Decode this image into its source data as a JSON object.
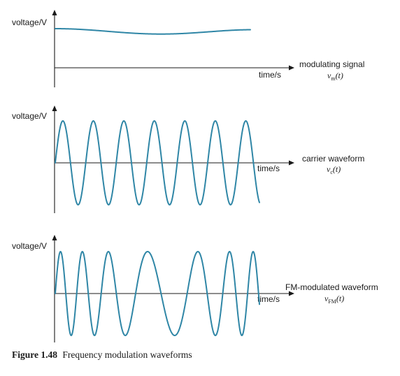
{
  "panels": [
    {
      "id": "modulating",
      "y_label": "voltage/V",
      "x_label": "time/s",
      "title": "modulating signal",
      "signal": {
        "symbol": "v",
        "sub": "m",
        "arg": "(t)"
      },
      "waveform": "slow sinusoid"
    },
    {
      "id": "carrier",
      "y_label": "voltage/V",
      "x_label": "time/s",
      "title": "carrier waveform",
      "signal": {
        "symbol": "v",
        "sub": "c",
        "arg": "(t)"
      },
      "waveform": "constant-frequency sinusoid"
    },
    {
      "id": "fm",
      "y_label": "voltage/V",
      "x_label": "time/s",
      "title": "FM-modulated waveform",
      "signal": {
        "symbol": "v",
        "sub": "FM",
        "arg": "(t)"
      },
      "waveform": "frequency-modulated sinusoid"
    }
  ],
  "caption": {
    "number": "Figure 1.48",
    "text": "Frequency modulation waveforms"
  },
  "colors": {
    "waveform": "#2f86a6",
    "axes": "#1a1a1a"
  }
}
